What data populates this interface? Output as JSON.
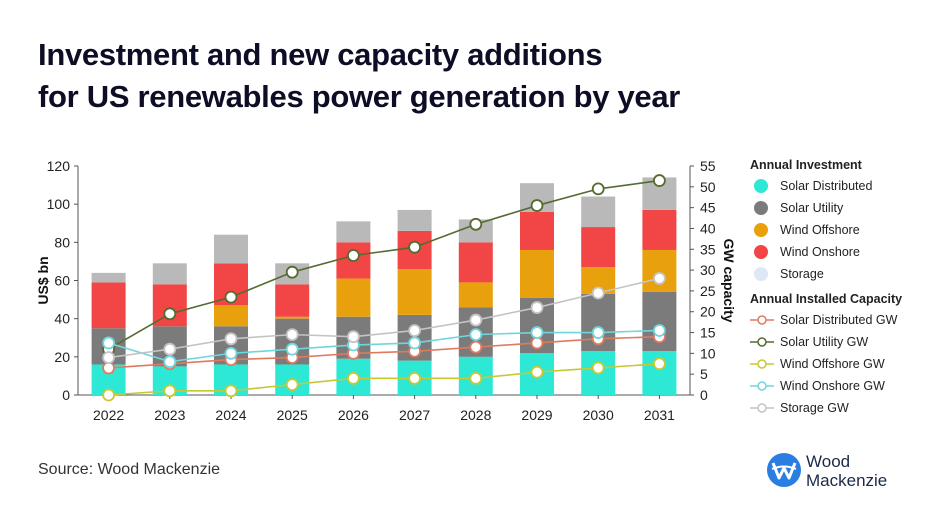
{
  "title_lines": [
    "Investment and new capacity additions",
    "for US renewables power generation by year"
  ],
  "source": "Source: Wood Mackenzie",
  "logo": {
    "line1": "Wood",
    "line2": "Mackenzie",
    "color": "#1b2a4a",
    "accent": "#2a7de1"
  },
  "legend": {
    "investment_heading": "Annual Investment",
    "capacity_heading": "Annual Installed Capacity"
  },
  "chart_data": {
    "type": "bar",
    "stacked": true,
    "categories": [
      "2022",
      "2023",
      "2024",
      "2025",
      "2026",
      "2027",
      "2028",
      "2029",
      "2030",
      "2031"
    ],
    "ylabel": "US$ bn",
    "y2label": "GW capacity",
    "ylim": [
      0,
      120
    ],
    "yticks": [
      0,
      20,
      40,
      60,
      80,
      100,
      120
    ],
    "y2lim": [
      0,
      55
    ],
    "y2ticks": [
      0,
      5,
      10,
      15,
      20,
      25,
      30,
      35,
      40,
      45,
      50,
      55
    ],
    "grid": false,
    "legend_position": "right",
    "bar_series": [
      {
        "name": "Solar Distributed",
        "color": "#2ee8d6",
        "values": [
          16,
          15,
          16,
          16,
          19,
          18,
          20,
          22,
          23,
          23
        ]
      },
      {
        "name": "Solar Utility",
        "color": "#7b7b7b",
        "values": [
          19,
          21,
          20,
          24,
          22,
          24,
          26,
          29,
          30,
          31
        ]
      },
      {
        "name": "Wind Offshore",
        "color": "#e8a10c",
        "values": [
          0,
          0,
          11,
          1,
          20,
          24,
          13,
          25,
          14,
          22
        ]
      },
      {
        "name": "Wind Onshore",
        "color": "#f24545",
        "values": [
          24,
          22,
          22,
          17,
          19,
          20,
          21,
          20,
          21,
          21
        ]
      },
      {
        "name": "Storage",
        "color": "#b9b9b9",
        "values": [
          5,
          11,
          15,
          11,
          11,
          11,
          12,
          15,
          16,
          17
        ]
      }
    ],
    "line_series": [
      {
        "name": "Solar Distributed GW",
        "color": "#e07a5f",
        "values": [
          6.5,
          7.5,
          8.5,
          9,
          10,
          10.5,
          11.5,
          12.5,
          13.5,
          14
        ]
      },
      {
        "name": "Solar Utility GW",
        "color": "#556b2f",
        "values": [
          11,
          19.5,
          23.5,
          29.5,
          33.5,
          35.5,
          41,
          45.5,
          49.5,
          51.5
        ]
      },
      {
        "name": "Wind Offshore GW",
        "color": "#c8c832",
        "values": [
          0,
          1,
          1,
          2.5,
          4,
          4,
          4,
          5.5,
          6.5,
          7.5
        ]
      },
      {
        "name": "Wind Onshore GW",
        "color": "#6fd6dc",
        "values": [
          12.5,
          8,
          10,
          11,
          12,
          12.5,
          14.5,
          15,
          15,
          15.5
        ]
      },
      {
        "name": "Storage GW",
        "color": "#c4c4c4",
        "values": [
          9,
          11,
          13.5,
          14.5,
          14,
          15.5,
          18,
          21,
          24.5,
          28
        ]
      }
    ]
  }
}
